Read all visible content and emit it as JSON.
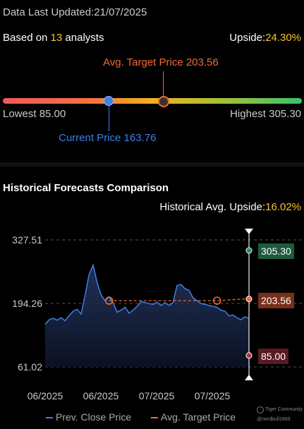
{
  "header": {
    "updated_label": "Data Last Updated:",
    "updated_date": "21/07/2025"
  },
  "summary": {
    "based_on_prefix": "Based on ",
    "analyst_count": "13",
    "based_on_suffix": " analysts",
    "upside_label": "Upside:",
    "upside_value": "24.30%"
  },
  "gauge": {
    "avg_target_label": "Avg. Target Price 203.56",
    "lowest_label": "Lowest 85.00",
    "highest_label": "Highest 305.30",
    "current_label": "Current Price 163.76",
    "low": 85.0,
    "high": 305.3,
    "current": 163.76,
    "avg_target": 203.56
  },
  "historical": {
    "title": "Historical Forecasts Comparison",
    "avg_upside_label": "Historical Avg. Upside:",
    "avg_upside_value": "16.02%"
  },
  "chart_data": {
    "type": "line",
    "y_ticks": [
      "327.51",
      "194.26",
      "61.02"
    ],
    "ylim": [
      61.02,
      327.51
    ],
    "x_labels": [
      "06/2025",
      "06/2025",
      "07/2025",
      "07/2025"
    ],
    "series": [
      {
        "name": "Prev. Close Price",
        "color": "#3f7fe6",
        "values": [
          150,
          160,
          163,
          159,
          164,
          158,
          168,
          178,
          182,
          172,
          212,
          255,
          275,
          238,
          212,
          200,
          208,
          196,
          176,
          180,
          186,
          174,
          180,
          188,
          198,
          196,
          194,
          192,
          197,
          190,
          196,
          190,
          196,
          232,
          234,
          225,
          222,
          206,
          200,
          194,
          192,
          190,
          188,
          186,
          180,
          178,
          168,
          170,
          164,
          160,
          166,
          163
        ]
      },
      {
        "name": "Avg. Target Price",
        "color": "#f06b35",
        "dashed": true,
        "values": [
          null,
          null,
          null,
          null,
          null,
          null,
          null,
          null,
          null,
          null,
          null,
          null,
          null,
          null,
          null,
          null,
          200,
          200,
          200,
          200,
          200,
          200,
          200,
          200,
          200,
          200,
          200,
          200,
          200,
          200,
          200,
          200,
          200,
          200,
          200,
          200,
          200,
          200,
          200,
          200,
          200,
          200,
          200,
          200,
          200,
          201,
          202,
          202,
          203,
          203,
          203.56,
          203.56
        ]
      }
    ],
    "markers": {
      "high": "305.30",
      "avg": "203.56",
      "low": "85.00"
    },
    "legend": [
      "Prev. Close Price",
      "Avg. Target Price"
    ]
  },
  "watermark": {
    "brand": "Tiger Community",
    "user": "@nerdbull1669"
  },
  "colors": {
    "high_tag_bg": "#1e5a3c",
    "avg_tag_bg": "#7a2e1a",
    "low_tag_bg": "#5a1a22"
  }
}
